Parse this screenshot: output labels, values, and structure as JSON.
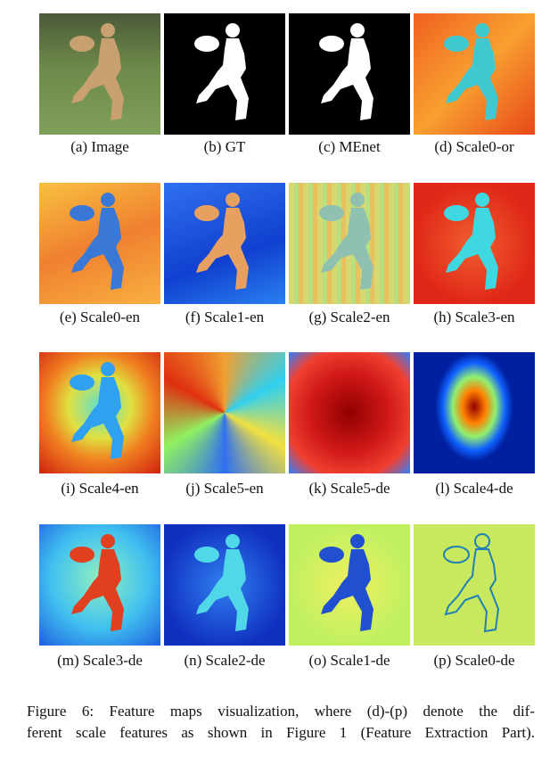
{
  "panels": [
    {
      "label": "(a) Image"
    },
    {
      "label": "(b) GT"
    },
    {
      "label": "(c) MEnet"
    },
    {
      "label": "(d) Scale0-or"
    },
    {
      "label": "(e) Scale0-en"
    },
    {
      "label": "(f) Scale1-en"
    },
    {
      "label": "(g) Scale2-en"
    },
    {
      "label": "(h) Scale3-en"
    },
    {
      "label": "(i) Scale4-en"
    },
    {
      "label": "(j) Scale5-en"
    },
    {
      "label": "(k) Scale5-de"
    },
    {
      "label": "(l) Scale4-de"
    },
    {
      "label": "(m) Scale3-de"
    },
    {
      "label": "(n) Scale2-de"
    },
    {
      "label": "(o) Scale1-de"
    },
    {
      "label": "(p) Scale0-de"
    }
  ],
  "figure_caption": {
    "lines": [
      "Figure 6: Feature maps visualization, where (d)-(p) denote the dif-",
      "ferent scale features as shown in Figure 1 (Feature Extraction Part)."
    ]
  }
}
